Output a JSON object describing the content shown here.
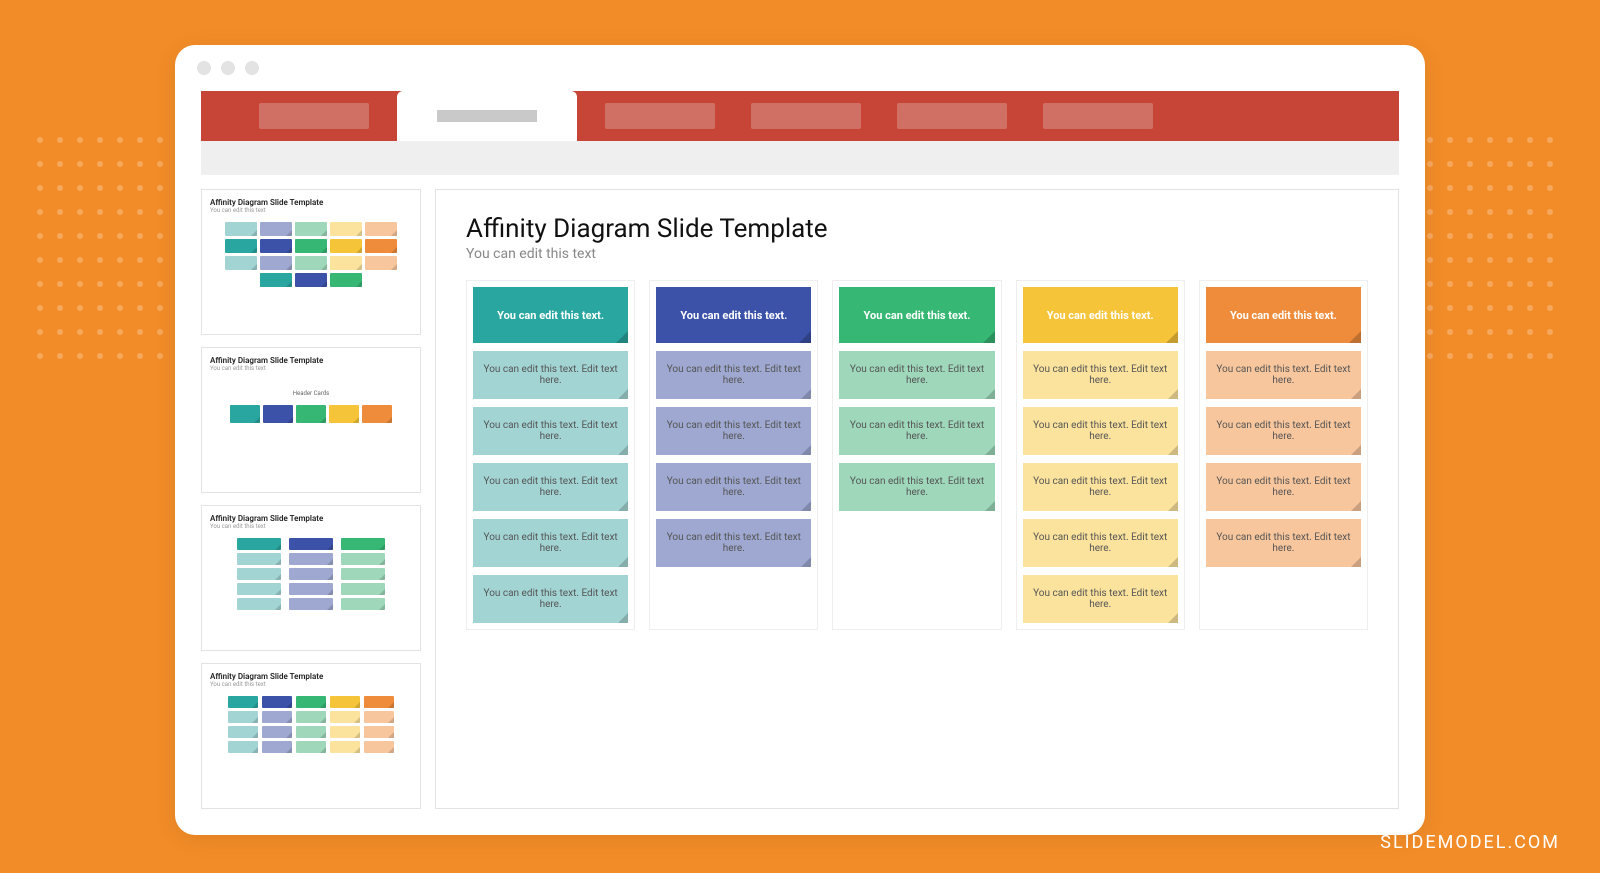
{
  "watermark": "SLIDEMODEL.COM",
  "slide": {
    "title": "Affinity Diagram Slide Template",
    "subtitle": "You can edit this text",
    "header_text": "You can edit this text.",
    "card_text": "You can edit this text. Edit text here.",
    "columns": [
      {
        "header_bg": "#2aa6a0",
        "card_bg": "#a2d4d3",
        "card_corner": "#2aa6a0",
        "count": 5
      },
      {
        "header_bg": "#3c52a8",
        "card_bg": "#9ea8d0",
        "card_corner": "#3c52a8",
        "count": 4
      },
      {
        "header_bg": "#37b774",
        "card_bg": "#9ed7ba",
        "card_corner": "#37b774",
        "count": 3
      },
      {
        "header_bg": "#f5c439",
        "card_bg": "#fbe39d",
        "card_corner": "#d9a81e",
        "count": 5
      },
      {
        "header_bg": "#ee8c3b",
        "card_bg": "#f8c69d",
        "card_corner": "#d6731f",
        "count": 4
      }
    ]
  },
  "thumbs": {
    "title": "Affinity Diagram Slide Template",
    "sub": "You can edit this text",
    "colors": [
      "#2aa6a0",
      "#3c52a8",
      "#37b774",
      "#f5c439",
      "#ee8c3b"
    ],
    "light": [
      "#a2d4d3",
      "#9ea8d0",
      "#9ed7ba",
      "#fbe39d",
      "#f8c69d"
    ],
    "t2_label": "Header Cards"
  },
  "dots": {
    "left_count": 70,
    "right_count": 110
  }
}
